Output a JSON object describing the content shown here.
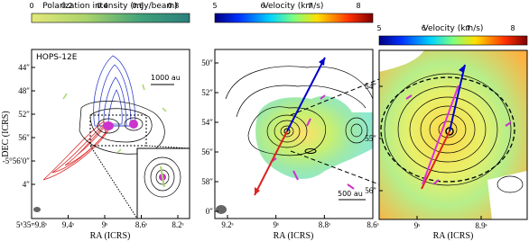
{
  "panels": [
    {
      "label": "HOPS-12E",
      "colorbar": {
        "title": "Polarization intensity (mJy/beam)",
        "ticks": [
          "0",
          "0.2",
          "0.4",
          "0.6",
          "0.8"
        ]
      },
      "xlabel": "RA (ICRS)",
      "ylabel": "DEC (ICRS)",
      "xticks": [
        "5ʰ35ᵐ9.8ˢ",
        "9.4ˢ",
        "9ˢ",
        "8.6ˢ",
        "8.2ˢ"
      ],
      "yticks": [
        "44″",
        "48″",
        "52″",
        "56″",
        "-5°56′0″",
        "4″"
      ],
      "scalebar": "1000 au"
    },
    {
      "colorbar": {
        "title": "Velocity (km/s)",
        "ticks": [
          "5",
          "6",
          "7",
          "8"
        ]
      },
      "xlabel": "RA (ICRS)",
      "xticks": [
        "9.2ˢ",
        "9ˢ",
        "8.8ˢ",
        "8.6ˢ"
      ],
      "yticks": [
        "50″",
        "52″",
        "54″",
        "56″",
        "58″",
        "0″"
      ],
      "scalebar": "500 au"
    },
    {
      "colorbar": {
        "title": "Velocity (km/s)",
        "ticks": [
          "5",
          "6",
          "7",
          "8"
        ]
      },
      "xlabel": "RA (ICRS)",
      "xticks": [
        "9ˢ",
        "8.9ˢ"
      ],
      "yticks": [
        "54″",
        "55″",
        "56″"
      ]
    }
  ]
}
